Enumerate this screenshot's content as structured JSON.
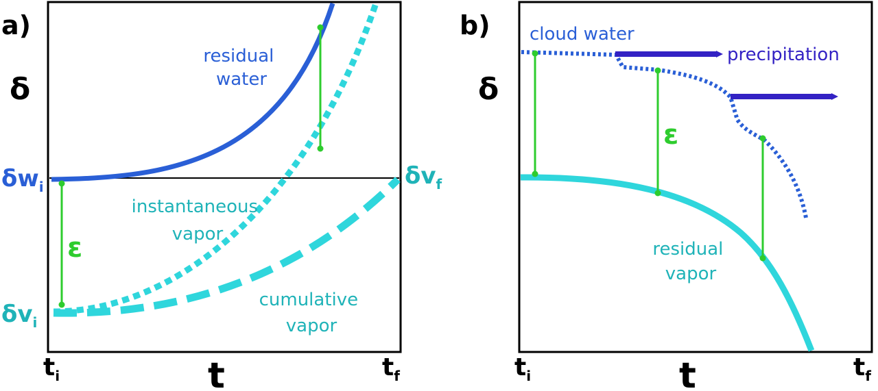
{
  "colors": {
    "residual_water": "#2a5fd6",
    "vapor": "#2fd6dc",
    "vapor_text": "#1fb3b8",
    "epsilon": "#2ecc2e",
    "precipitation": "#3322c4",
    "frame": "#000000"
  },
  "panel_a": {
    "tag": "a)",
    "y_axis_label": "δ",
    "x_axis_label": "t",
    "x_start": "t",
    "x_start_sub": "i",
    "x_end": "t",
    "x_end_sub": "f",
    "label_dwi": "δw",
    "label_dwi_sub": "i",
    "label_dvf": "δv",
    "label_dvf_sub": "f",
    "label_dvi": "δv",
    "label_dvi_sub": "i",
    "epsilon": "ε",
    "residual_water": [
      "residual",
      "water"
    ],
    "instantaneous_vapor": [
      "instantaneous",
      "vapor"
    ],
    "cumulative_vapor": [
      "cumulative",
      "vapor"
    ]
  },
  "panel_b": {
    "tag": "b)",
    "y_axis_label": "δ",
    "x_axis_label": "t",
    "x_start": "t",
    "x_start_sub": "i",
    "x_end": "t",
    "x_end_sub": "f",
    "cloud_water": "cloud water",
    "precipitation": "precipitation",
    "epsilon": "ε",
    "residual_vapor": [
      "residual",
      "vapor"
    ]
  }
}
